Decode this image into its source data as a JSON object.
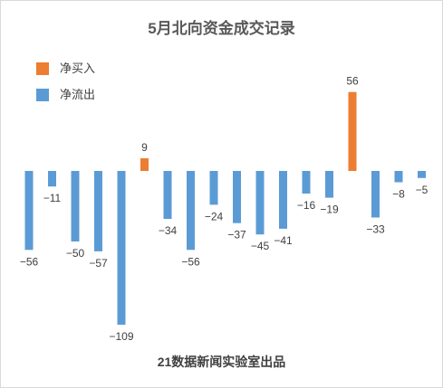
{
  "chart_data": {
    "type": "bar",
    "title": "5月北向资金成交记录",
    "footer": "21数据新闻实验室出品",
    "values": [
      -56,
      -11,
      -50,
      -57,
      -109,
      9,
      -34,
      -56,
      -24,
      -37,
      -45,
      -41,
      -16,
      -19,
      56,
      -33,
      -8,
      -5
    ],
    "value_labels": [
      "−56",
      "−11",
      "−50",
      "−57",
      "−109",
      "9",
      "−34",
      "−56",
      "−24",
      "−37",
      "−45",
      "−41",
      "−16",
      "−19",
      "56",
      "−33",
      "−8",
      "−5"
    ],
    "series": [
      {
        "name": "净买入",
        "color": "#ed7d31"
      },
      {
        "name": "净流出",
        "color": "#5b9bd5"
      }
    ],
    "legend_position": "top-left",
    "grid": false
  }
}
